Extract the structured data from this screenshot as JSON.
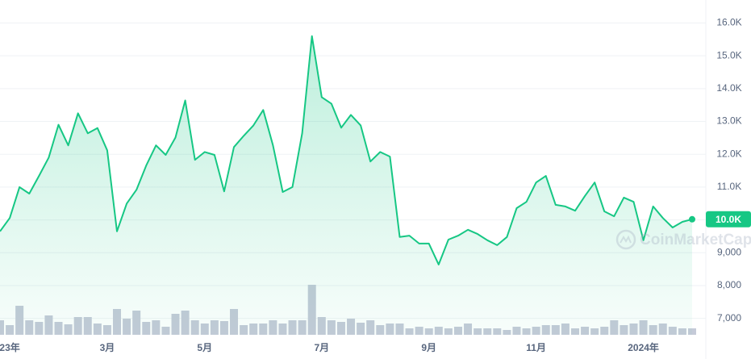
{
  "chart_data": {
    "type": "line",
    "watermark": "CoinMarketCap",
    "categories": [
      null,
      "23年",
      null,
      null,
      null,
      null,
      null,
      null,
      null,
      null,
      null,
      "3月",
      null,
      null,
      null,
      null,
      null,
      null,
      null,
      null,
      null,
      "5月",
      null,
      null,
      null,
      null,
      null,
      null,
      null,
      null,
      null,
      null,
      null,
      "7月",
      null,
      null,
      null,
      null,
      null,
      null,
      null,
      null,
      null,
      null,
      "9月",
      null,
      null,
      null,
      null,
      null,
      null,
      null,
      null,
      null,
      null,
      "11月",
      null,
      null,
      null,
      null,
      null,
      null,
      null,
      null,
      null,
      null,
      "2024年",
      null,
      null,
      null,
      null,
      null
    ],
    "series": [
      {
        "color": "#16c784",
        "values": [
          9650,
          10060,
          11000,
          10800,
          11340,
          11900,
          12900,
          12270,
          13250,
          12640,
          12800,
          12120,
          9650,
          10500,
          10920,
          11660,
          12270,
          11980,
          12510,
          13640,
          11830,
          12070,
          11980,
          10870,
          12220,
          12560,
          12880,
          13350,
          12270,
          10850,
          11000,
          12640,
          15600,
          13740,
          13540,
          12810,
          13200,
          12880,
          11780,
          12070,
          11930,
          9480,
          9520,
          9280,
          9280,
          8640,
          9400,
          9520,
          9700,
          9570,
          9380,
          9230,
          9480,
          10360,
          10550,
          11140,
          11340,
          10460,
          10410,
          10280,
          10730,
          11140,
          10260,
          10110,
          10680,
          10550,
          9380,
          10410,
          10060,
          9770,
          9940,
          10020
        ],
        "value_labels": [
          null,
          null,
          null,
          null,
          null,
          null,
          null,
          null,
          null,
          null,
          null,
          null,
          null,
          null,
          null,
          null,
          null,
          null,
          null,
          null,
          null,
          null,
          null,
          null,
          null,
          null,
          null,
          null,
          null,
          null,
          null,
          null,
          null,
          null,
          null,
          null,
          null,
          null,
          null,
          null,
          null,
          null,
          null,
          null,
          null,
          null,
          null,
          null,
          null,
          null,
          null,
          null,
          null,
          null,
          null,
          null,
          null,
          null,
          null,
          null,
          null,
          null,
          null,
          null,
          null,
          null,
          null,
          null,
          null,
          null,
          null,
          "10.0K"
        ]
      },
      {
        "type": "bar",
        "axis": "y2",
        "color": "#c5cad8",
        "values": [
          18,
          12,
          36,
          18,
          16,
          24,
          16,
          13,
          22,
          22,
          14,
          12,
          32,
          20,
          30,
          16,
          18,
          10,
          26,
          30,
          18,
          14,
          18,
          17,
          32,
          12,
          14,
          14,
          18,
          14,
          18,
          18,
          62,
          22,
          18,
          16,
          20,
          15,
          18,
          12,
          14,
          14,
          8,
          10,
          8,
          10,
          8,
          10,
          14,
          8,
          8,
          8,
          6,
          10,
          8,
          10,
          12,
          12,
          14,
          8,
          10,
          8,
          10,
          18,
          12,
          14,
          18,
          12,
          14,
          10,
          8,
          8
        ]
      }
    ],
    "ylim": [
      6500,
      16700
    ],
    "yticks": [
      {
        "value": 7000,
        "label": "7,000"
      },
      {
        "value": 8000,
        "label": "8,000"
      },
      {
        "value": 9000,
        "label": "9,000"
      },
      {
        "value": 10000,
        "label": "10.0K"
      },
      {
        "value": 11000,
        "label": "11.0K"
      },
      {
        "value": 12000,
        "label": "12.0K"
      },
      {
        "value": 13000,
        "label": "13.0K"
      },
      {
        "value": 14000,
        "label": "14.0K"
      },
      {
        "value": 15000,
        "label": "15.0K"
      },
      {
        "value": 16000,
        "label": "16.0K"
      }
    ],
    "y2lim": [
      0,
      415
    ],
    "grid": true
  }
}
